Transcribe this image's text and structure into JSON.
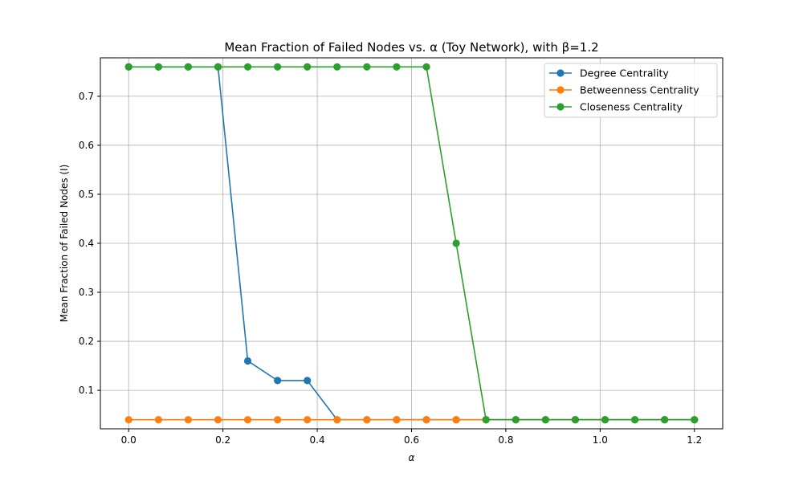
{
  "chart_data": {
    "type": "line",
    "title": "Mean Fraction of Failed Nodes vs. α (Toy Network), with β=1.2",
    "xlabel": "α",
    "ylabel": "Mean Fraction of Failed Nodes (I)",
    "xlim": [
      -0.06,
      1.26
    ],
    "ylim": [
      0.0215,
      0.7785
    ],
    "xticks": [
      0.0,
      0.2,
      0.4,
      0.6,
      0.8,
      1.0,
      1.2
    ],
    "xtick_labels": [
      "0.0",
      "0.2",
      "0.4",
      "0.6",
      "0.8",
      "1.0",
      "1.2"
    ],
    "yticks": [
      0.1,
      0.2,
      0.3,
      0.4,
      0.5,
      0.6,
      0.7
    ],
    "ytick_labels": [
      "0.1",
      "0.2",
      "0.3",
      "0.4",
      "0.5",
      "0.6",
      "0.7"
    ],
    "grid": true,
    "legend_position": "top-right",
    "x": [
      0.0,
      0.0632,
      0.1263,
      0.1895,
      0.2526,
      0.3158,
      0.3789,
      0.4421,
      0.5053,
      0.5684,
      0.6316,
      0.6947,
      0.7579,
      0.8211,
      0.8842,
      0.9474,
      1.0105,
      1.0737,
      1.1368,
      1.2
    ],
    "series": [
      {
        "name": "Degree Centrality",
        "color": "#1f77b4",
        "values": [
          0.76,
          0.76,
          0.76,
          0.76,
          0.16,
          0.12,
          0.12,
          0.04,
          0.04,
          0.04,
          0.04,
          0.04,
          0.04,
          0.04,
          0.04,
          0.04,
          0.04,
          0.04,
          0.04,
          0.04
        ]
      },
      {
        "name": "Betweenness Centrality",
        "color": "#ff7f0e",
        "values": [
          0.04,
          0.04,
          0.04,
          0.04,
          0.04,
          0.04,
          0.04,
          0.04,
          0.04,
          0.04,
          0.04,
          0.04,
          0.04,
          0.04,
          0.04,
          0.04,
          0.04,
          0.04,
          0.04,
          0.04
        ]
      },
      {
        "name": "Closeness Centrality",
        "color": "#2ca02c",
        "values": [
          0.76,
          0.76,
          0.76,
          0.76,
          0.76,
          0.76,
          0.76,
          0.76,
          0.76,
          0.76,
          0.76,
          0.4,
          0.04,
          0.04,
          0.04,
          0.04,
          0.04,
          0.04,
          0.04,
          0.04
        ]
      }
    ]
  }
}
